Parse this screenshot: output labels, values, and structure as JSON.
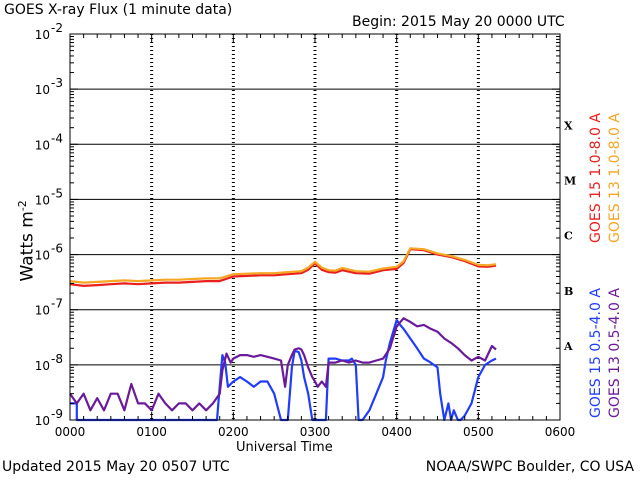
{
  "header": {
    "title": "GOES X-ray Flux (1 minute data)",
    "begin": "Begin: 2015 May 20 0000 UTC"
  },
  "footer": {
    "updated": "Updated 2015 May 20 0507 UTC",
    "credit": "NOAA/SWPC Boulder, CO USA"
  },
  "chart_data": {
    "type": "line",
    "title": "GOES X-ray Flux (1 minute data)",
    "xlabel": "Universal Time",
    "ylabel": "Watts m",
    "ylabel_sup": "-2",
    "xlim": [
      0,
      360
    ],
    "ylim": [
      1e-09,
      0.01
    ],
    "yscale": "log",
    "grid": "horizontal",
    "x_ticks": [
      {
        "minute": 0,
        "label": "0000"
      },
      {
        "minute": 60,
        "label": "0100"
      },
      {
        "minute": 120,
        "label": "0200"
      },
      {
        "minute": 180,
        "label": "0300"
      },
      {
        "minute": 240,
        "label": "0400"
      },
      {
        "minute": 300,
        "label": "0500"
      },
      {
        "minute": 360,
        "label": "0600"
      }
    ],
    "y_ticks": [
      {
        "exp": -9,
        "label": "10",
        "sup": "-9"
      },
      {
        "exp": -8,
        "label": "10",
        "sup": "-8"
      },
      {
        "exp": -7,
        "label": "10",
        "sup": "-7"
      },
      {
        "exp": -6,
        "label": "10",
        "sup": "-6"
      },
      {
        "exp": -5,
        "label": "10",
        "sup": "-5"
      },
      {
        "exp": -4,
        "label": "10",
        "sup": "-4"
      },
      {
        "exp": -3,
        "label": "10",
        "sup": "-3"
      },
      {
        "exp": -2,
        "label": "10",
        "sup": "-2"
      }
    ],
    "flare_classes": [
      {
        "label": "A",
        "exp": -8
      },
      {
        "label": "B",
        "exp": -7
      },
      {
        "label": "C",
        "exp": -6
      },
      {
        "label": "M",
        "exp": -5
      },
      {
        "label": "X",
        "exp": -4
      }
    ],
    "legend_placement": "right",
    "series": [
      {
        "name": "GOES 15 1.0-8.0 A",
        "color": "#e8201e",
        "x": [
          0,
          10,
          20,
          30,
          40,
          50,
          60,
          70,
          80,
          90,
          100,
          110,
          120,
          130,
          140,
          150,
          160,
          170,
          175,
          180,
          185,
          190,
          195,
          200,
          210,
          220,
          230,
          240,
          245,
          250,
          260,
          270,
          280,
          290,
          300,
          307,
          313
        ],
        "y": [
          2.9e-07,
          2.7e-07,
          2.8e-07,
          2.9e-07,
          3e-07,
          2.9e-07,
          3e-07,
          3.1e-07,
          3.1e-07,
          3.2e-07,
          3.3e-07,
          3.3e-07,
          4e-07,
          4.1e-07,
          4.2e-07,
          4.2e-07,
          4.4e-07,
          4.6e-07,
          5.3e-07,
          6.9e-07,
          5.3e-07,
          4.8e-07,
          4.7e-07,
          5.2e-07,
          4.6e-07,
          4.5e-07,
          5.2e-07,
          5.5e-07,
          7e-07,
          1.25e-06,
          1.2e-06,
          1e-06,
          9e-07,
          7.6e-07,
          6.1e-07,
          6e-07,
          6.3e-07
        ]
      },
      {
        "name": "GOES 13 1.0-8.0 A",
        "color": "#f5a623",
        "x": [
          0,
          10,
          20,
          30,
          40,
          50,
          60,
          70,
          80,
          90,
          100,
          110,
          120,
          130,
          140,
          150,
          160,
          170,
          175,
          180,
          185,
          190,
          195,
          200,
          210,
          220,
          230,
          240,
          245,
          250,
          260,
          270,
          280,
          290,
          300,
          307,
          313
        ],
        "y": [
          3.3e-07,
          3.1e-07,
          3.2e-07,
          3.3e-07,
          3.4e-07,
          3.3e-07,
          3.4e-07,
          3.5e-07,
          3.5e-07,
          3.6e-07,
          3.7e-07,
          3.7e-07,
          4.4e-07,
          4.5e-07,
          4.6e-07,
          4.6e-07,
          4.8e-07,
          5e-07,
          5.8e-07,
          7.4e-07,
          5.8e-07,
          5.2e-07,
          5.1e-07,
          5.7e-07,
          5e-07,
          4.9e-07,
          5.6e-07,
          6e-07,
          7.5e-07,
          1.3e-06,
          1.25e-06,
          1.05e-06,
          9.4e-07,
          8e-07,
          6.5e-07,
          6.4e-07,
          6.7e-07
        ]
      },
      {
        "name": "GOES 15 0.5-4.0 A",
        "color": "#1f3cff",
        "x": [
          0,
          5,
          5,
          108,
          110,
          112,
          114,
          116,
          120,
          125,
          130,
          135,
          140,
          145,
          150,
          155,
          158,
          160,
          163,
          165,
          168,
          170,
          172,
          175,
          178,
          180,
          182,
          185,
          188,
          190,
          195,
          200,
          205,
          207,
          210,
          212,
          215,
          220,
          225,
          230,
          232,
          235,
          240,
          242,
          245,
          250,
          255,
          260,
          265,
          270,
          272,
          275,
          278,
          280,
          282,
          285,
          287,
          290,
          295,
          300,
          305,
          310,
          313
        ],
        "y": [
          2e-09,
          2e-09,
          1e-09,
          1e-09,
          4e-09,
          1.5e-08,
          1.1e-08,
          4e-09,
          5e-09,
          6e-09,
          5e-09,
          4e-09,
          5e-09,
          5e-09,
          3e-09,
          1e-09,
          1e-09,
          1e-09,
          9e-09,
          1.8e-08,
          1.7e-08,
          1.2e-08,
          6e-09,
          3e-09,
          1e-09,
          1e-09,
          1e-09,
          1e-09,
          1e-09,
          1.3e-08,
          1.3e-08,
          1.2e-08,
          1.2e-08,
          1.3e-08,
          1e-08,
          1e-09,
          1e-09,
          1.5e-09,
          3e-09,
          6e-09,
          1.2e-08,
          2.5e-08,
          6.5e-08,
          5.5e-08,
          4.5e-08,
          3e-08,
          2e-08,
          1.3e-08,
          1.1e-08,
          9e-09,
          3e-09,
          1e-09,
          2e-09,
          1e-09,
          1.5e-09,
          1e-09,
          1e-09,
          1.2e-09,
          2e-09,
          6e-09,
          1e-08,
          1.2e-08,
          1.3e-08
        ]
      },
      {
        "name": "GOES 13 0.5-4.0 A",
        "color": "#6a1b9a",
        "x": [
          0,
          5,
          10,
          15,
          20,
          25,
          30,
          35,
          40,
          45,
          50,
          55,
          60,
          65,
          70,
          75,
          80,
          85,
          90,
          95,
          100,
          105,
          110,
          112,
          115,
          118,
          120,
          125,
          130,
          135,
          140,
          145,
          150,
          155,
          158,
          160,
          163,
          165,
          168,
          170,
          172,
          175,
          178,
          180,
          182,
          185,
          188,
          190,
          195,
          200,
          205,
          210,
          215,
          220,
          225,
          230,
          235,
          240,
          245,
          250,
          255,
          260,
          265,
          270,
          275,
          280,
          285,
          290,
          295,
          300,
          305,
          310,
          313
        ],
        "y": [
          3e-09,
          2e-09,
          3e-09,
          1.5e-09,
          2.5e-09,
          1.5e-09,
          3e-09,
          3e-09,
          1.5e-09,
          4.5e-09,
          2e-09,
          2e-09,
          1.5e-09,
          3e-09,
          2e-09,
          1.5e-09,
          2e-09,
          2e-09,
          1.5e-09,
          2e-09,
          1.5e-09,
          2e-09,
          3e-09,
          8e-09,
          1.6e-08,
          1.1e-08,
          1.3e-08,
          1.5e-08,
          1.5e-08,
          1.4e-08,
          1.5e-08,
          1.4e-08,
          1.3e-08,
          1.2e-08,
          4e-09,
          1e-08,
          1.5e-08,
          1.9e-08,
          2e-08,
          1.9e-08,
          1.5e-08,
          9e-09,
          6e-09,
          5e-09,
          4e-09,
          5e-09,
          4e-09,
          1.1e-08,
          1.1e-08,
          1.2e-08,
          1.1e-08,
          1.2e-08,
          1.1e-08,
          1.1e-08,
          1.2e-08,
          1.3e-08,
          2e-08,
          5e-08,
          7e-08,
          6e-08,
          5e-08,
          5.3e-08,
          4.5e-08,
          4e-08,
          3e-08,
          2.5e-08,
          2e-08,
          1.5e-08,
          1.2e-08,
          1.4e-08,
          1.2e-08,
          2.2e-08,
          1.9e-08
        ]
      }
    ]
  }
}
